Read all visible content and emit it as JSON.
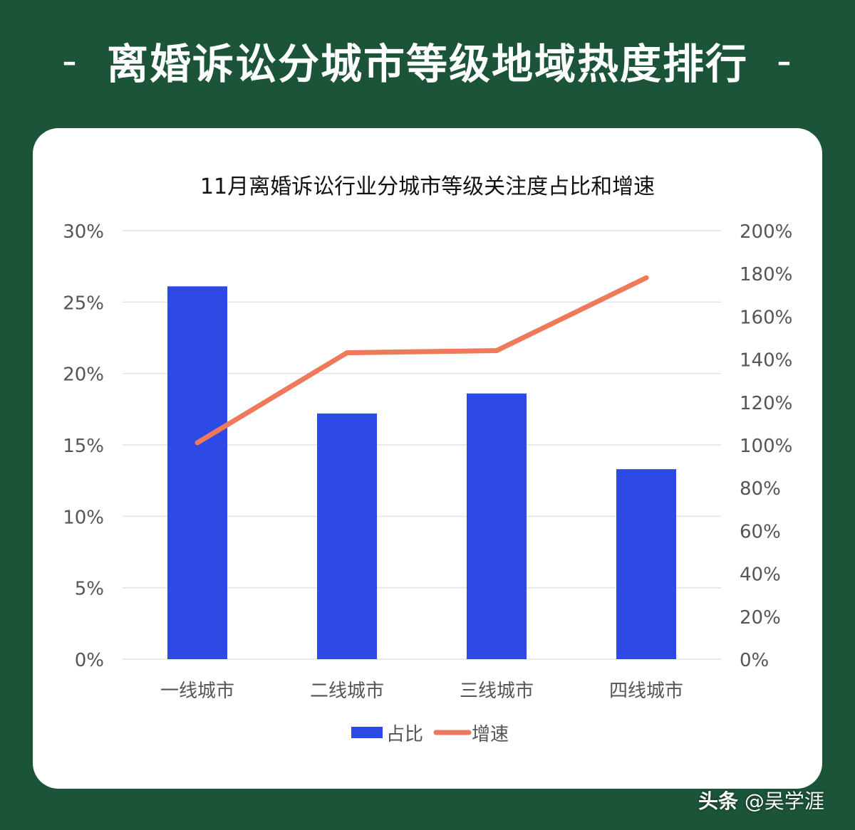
{
  "page": {
    "heading": "离婚诉讼分城市等级地域热度排行",
    "dash": "-",
    "watermark_brand": "头条",
    "watermark_user": "@吴学涯"
  },
  "colors": {
    "background": "#1b5439",
    "bar": "#2e4ae6",
    "line": "#ee7a5a",
    "grid": "#e2e2e2",
    "tick_text": "#555555",
    "title_text": "#111111"
  },
  "chart_data": {
    "type": "bar",
    "title": "11月离婚诉讼行业分城市等级关注度占比和增速",
    "categories": [
      "一线城市",
      "二线城市",
      "三线城市",
      "四线城市"
    ],
    "series": [
      {
        "name": "占比",
        "type": "bar",
        "axis": "left",
        "values": [
          26.1,
          17.2,
          18.6,
          13.3
        ]
      },
      {
        "name": "增速",
        "type": "line",
        "axis": "right",
        "values": [
          101,
          143,
          144,
          178
        ]
      }
    ],
    "y_left": {
      "min": 0,
      "max": 30,
      "ticks": [
        "0%",
        "5%",
        "10%",
        "15%",
        "20%",
        "25%",
        "30%"
      ]
    },
    "y_right": {
      "min": 0,
      "max": 200,
      "ticks": [
        "0%",
        "20%",
        "40%",
        "60%",
        "80%",
        "100%",
        "120%",
        "140%",
        "160%",
        "180%",
        "200%"
      ]
    },
    "grid": true,
    "legend": "bottom-center"
  }
}
